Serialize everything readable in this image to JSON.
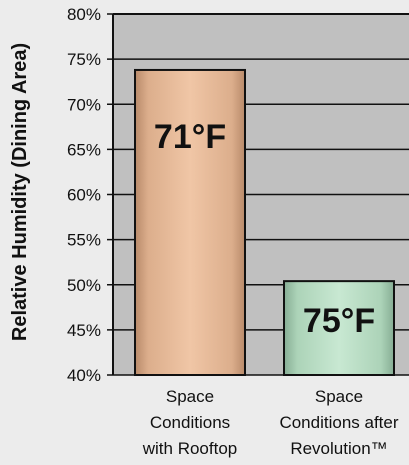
{
  "chart_data": {
    "type": "bar",
    "title": "",
    "xlabel": "",
    "ylabel": "Relative Humidity (Dining Area)",
    "ylim": [
      40,
      80
    ],
    "yticks": [
      "40%",
      "45%",
      "50%",
      "55%",
      "60%",
      "65%",
      "70%",
      "75%",
      "80%"
    ],
    "ytick_values": [
      40,
      45,
      50,
      55,
      60,
      65,
      70,
      75,
      80
    ],
    "grid": true,
    "categories": [
      [
        "Space",
        "Conditions",
        "with Rooftop"
      ],
      [
        "Space",
        "Conditions after",
        "Revolution™"
      ]
    ],
    "values": [
      73.8,
      50.4
    ],
    "bar_labels": [
      "71°F",
      "75°F"
    ],
    "colors": {
      "bar1": "#e6b894",
      "bar2": "#b9dcc4",
      "plot_bg": "#c0c0c0",
      "page_bg": "#ececec"
    }
  }
}
